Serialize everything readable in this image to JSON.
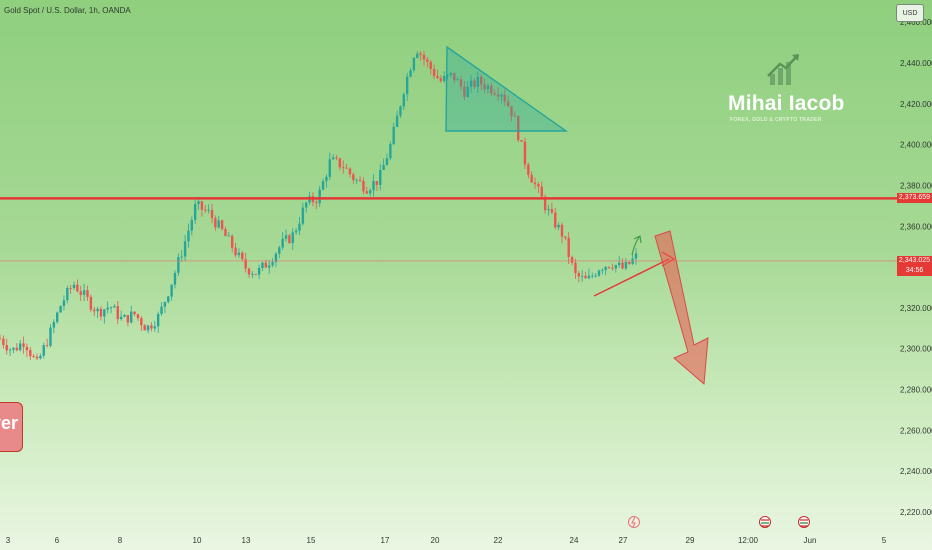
{
  "header": {
    "symbol_title": "Gold Spot / U.S. Dollar, 1h, OANDA"
  },
  "currency_button": "USD",
  "watermark": {
    "name": "Mihai Iacob",
    "tagline": "FOREX, GOLD & CRYPTO TRADER",
    "icon": "bar-chart-arrow-icon"
  },
  "ribbon_text": "ver",
  "colors": {
    "up": "#26a69a",
    "down": "#ef5350",
    "resistance": "#e53935",
    "triangle": "#26a69a",
    "arrow": "#ef5350"
  },
  "chart_data": {
    "type": "candlestick",
    "instrument": "Gold Spot / U.S. Dollar",
    "timeframe": "1h",
    "ylim": [
      2215,
      2460
    ],
    "y_ticks": [
      2220,
      2240,
      2260,
      2280,
      2300,
      2320,
      2340,
      2360,
      2380,
      2400,
      2420,
      2440,
      2460
    ],
    "y_tick_labels": [
      "2,220.000",
      "2,240.000",
      "2,260.000",
      "2,280.000",
      "2,300.000",
      "2,320.000",
      "2,340.000",
      "2,360.000",
      "2,380.000",
      "2,400.000",
      "2,420.000",
      "2,440.000",
      "2,460.000"
    ],
    "x_ticks": [
      {
        "label": "3",
        "slot": 0
      },
      {
        "label": "6",
        "slot": 1
      },
      {
        "label": "8",
        "slot": 2
      },
      {
        "label": "10",
        "slot": 3
      },
      {
        "label": "13",
        "slot": 4
      },
      {
        "label": "15",
        "slot": 5
      },
      {
        "label": "17",
        "slot": 6
      },
      {
        "label": "20",
        "slot": 7
      },
      {
        "label": "22",
        "slot": 8
      },
      {
        "label": "24",
        "slot": 9
      },
      {
        "label": "27",
        "slot": 10
      },
      {
        "label": "29",
        "slot": 11
      },
      {
        "label": "12:00",
        "slot": 12
      },
      {
        "label": "Jun",
        "slot": 13
      },
      {
        "label": "5",
        "slot": 14
      }
    ],
    "close_path": [
      2305,
      2299,
      2304,
      2292,
      2306,
      2322,
      2332,
      2325,
      2318,
      2321,
      2314,
      2317,
      2310,
      2316,
      2332,
      2350,
      2370,
      2367,
      2359,
      2350,
      2340,
      2337,
      2343,
      2351,
      2356,
      2371,
      2374,
      2392,
      2390,
      2383,
      2379,
      2383,
      2401,
      2427,
      2448,
      2439,
      2431,
      2434,
      2426,
      2431,
      2428,
      2426,
      2414,
      2390,
      2377,
      2365,
      2356,
      2336,
      2333,
      2340,
      2342,
      2339,
      2345
    ],
    "current_price": {
      "value": "2,343.025",
      "countdown": "34:56"
    },
    "resistance": {
      "value": "2,373.659",
      "price": 2373.659
    },
    "annotations": [
      {
        "type": "descending-triangle",
        "points": [
          [
            2447,
            "top"
          ],
          [
            2417,
            "base-left"
          ],
          [
            2417,
            "base-right"
          ]
        ]
      },
      {
        "type": "rising-trendline"
      },
      {
        "type": "down-arrow"
      },
      {
        "type": "small-up-arrow"
      }
    ],
    "event_icons": [
      "news-flash-icon",
      "us-flag-icon",
      "us-flag-icon"
    ],
    "grid": false,
    "legend": "none"
  }
}
